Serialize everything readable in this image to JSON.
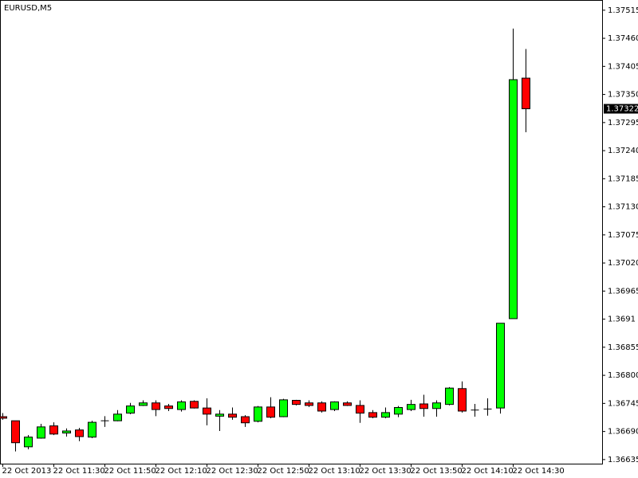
{
  "chart_data": {
    "type": "candlestick",
    "title": "EURUSD,M5",
    "categories": [
      "22 Oct 2013",
      null,
      null,
      null,
      "22 Oct 11:30",
      null,
      null,
      null,
      "22 Oct 11:50",
      null,
      null,
      null,
      "22 Oct 12:10",
      null,
      null,
      null,
      "22 Oct 12:30",
      null,
      null,
      null,
      "22 Oct 12:50",
      null,
      null,
      null,
      "22 Oct 13:10",
      null,
      null,
      null,
      "22 Oct 13:30",
      null,
      null,
      null,
      "22 Oct 13:50",
      null,
      null,
      null,
      "22 Oct 14:10",
      null,
      null,
      null,
      "22 Oct 14:30",
      null
    ],
    "open": [
      1.36719,
      1.36711,
      1.3666,
      1.36677,
      1.36701,
      1.36687,
      1.36693,
      1.36679,
      1.36711,
      1.36711,
      1.36726,
      1.36741,
      1.36746,
      1.3674,
      1.36733,
      1.36749,
      1.36736,
      1.3672,
      1.36724,
      1.36719,
      1.3671,
      1.36738,
      1.36719,
      1.36751,
      1.36746,
      1.36746,
      1.36733,
      1.36746,
      1.36741,
      1.36727,
      1.36718,
      1.36724,
      1.36733,
      1.36744,
      1.36735,
      1.36743,
      1.36774,
      1.36732,
      1.36734,
      1.36736,
      1.36911,
      1.37382
    ],
    "high": [
      1.36726,
      1.36711,
      1.36683,
      1.36705,
      1.36708,
      1.36696,
      1.36697,
      1.36711,
      1.3672,
      1.36732,
      1.36746,
      1.36751,
      1.36751,
      1.36744,
      1.36751,
      1.36751,
      1.36755,
      1.36732,
      1.36737,
      1.36722,
      1.3674,
      1.36757,
      1.36754,
      1.36752,
      1.36751,
      1.36749,
      1.36749,
      1.36749,
      1.36751,
      1.36732,
      1.36737,
      1.3674,
      1.36752,
      1.36762,
      1.36751,
      1.36777,
      1.36788,
      1.36744,
      1.36755,
      1.36902,
      1.37479,
      1.37439
    ],
    "low": [
      1.36713,
      1.36651,
      1.36655,
      1.36676,
      1.36683,
      1.3668,
      1.36671,
      1.36677,
      1.36699,
      1.3671,
      1.36724,
      1.3674,
      1.3672,
      1.3673,
      1.36729,
      1.36735,
      1.36702,
      1.36691,
      1.36713,
      1.36699,
      1.36708,
      1.36716,
      1.36718,
      1.36741,
      1.36738,
      1.36727,
      1.3673,
      1.3674,
      1.36707,
      1.36716,
      1.36716,
      1.36718,
      1.3673,
      1.36719,
      1.36719,
      1.36741,
      1.36727,
      1.36719,
      1.36721,
      1.36725,
      1.36911,
      1.37276
    ],
    "close": [
      1.36716,
      1.36668,
      1.36679,
      1.36699,
      1.36685,
      1.36691,
      1.3668,
      1.36708,
      1.36711,
      1.36724,
      1.3674,
      1.36746,
      1.36733,
      1.36735,
      1.36748,
      1.36736,
      1.36724,
      1.36724,
      1.36718,
      1.36707,
      1.36738,
      1.36718,
      1.36752,
      1.36743,
      1.36741,
      1.3673,
      1.36748,
      1.36741,
      1.36726,
      1.36718,
      1.36727,
      1.36737,
      1.36743,
      1.36735,
      1.36746,
      1.36775,
      1.3673,
      1.36732,
      1.36735,
      1.36902,
      1.37379,
      1.37322
    ],
    "up_color": "#00ff00",
    "down_color": "#ff0000",
    "ylim": [
      1.36627,
      1.37535
    ],
    "yticks": [
      1.36635,
      {
        "value": 1.3669,
        "label": "1.36690"
      },
      1.36745,
      {
        "value": 1.368,
        "label": "1.36800"
      },
      1.36855,
      1.3691,
      1.36965,
      {
        "value": 1.3702,
        "label": "1.37020"
      },
      1.37075,
      {
        "value": 1.3713,
        "label": "1.37130"
      },
      1.37185,
      {
        "value": 1.3724,
        "label": "1.37240"
      },
      1.37295,
      {
        "value": 1.3735,
        "label": "1.37350"
      },
      1.37405,
      {
        "value": 1.3746,
        "label": "1.37460"
      },
      1.37515
    ],
    "last_price": 1.37322
  }
}
